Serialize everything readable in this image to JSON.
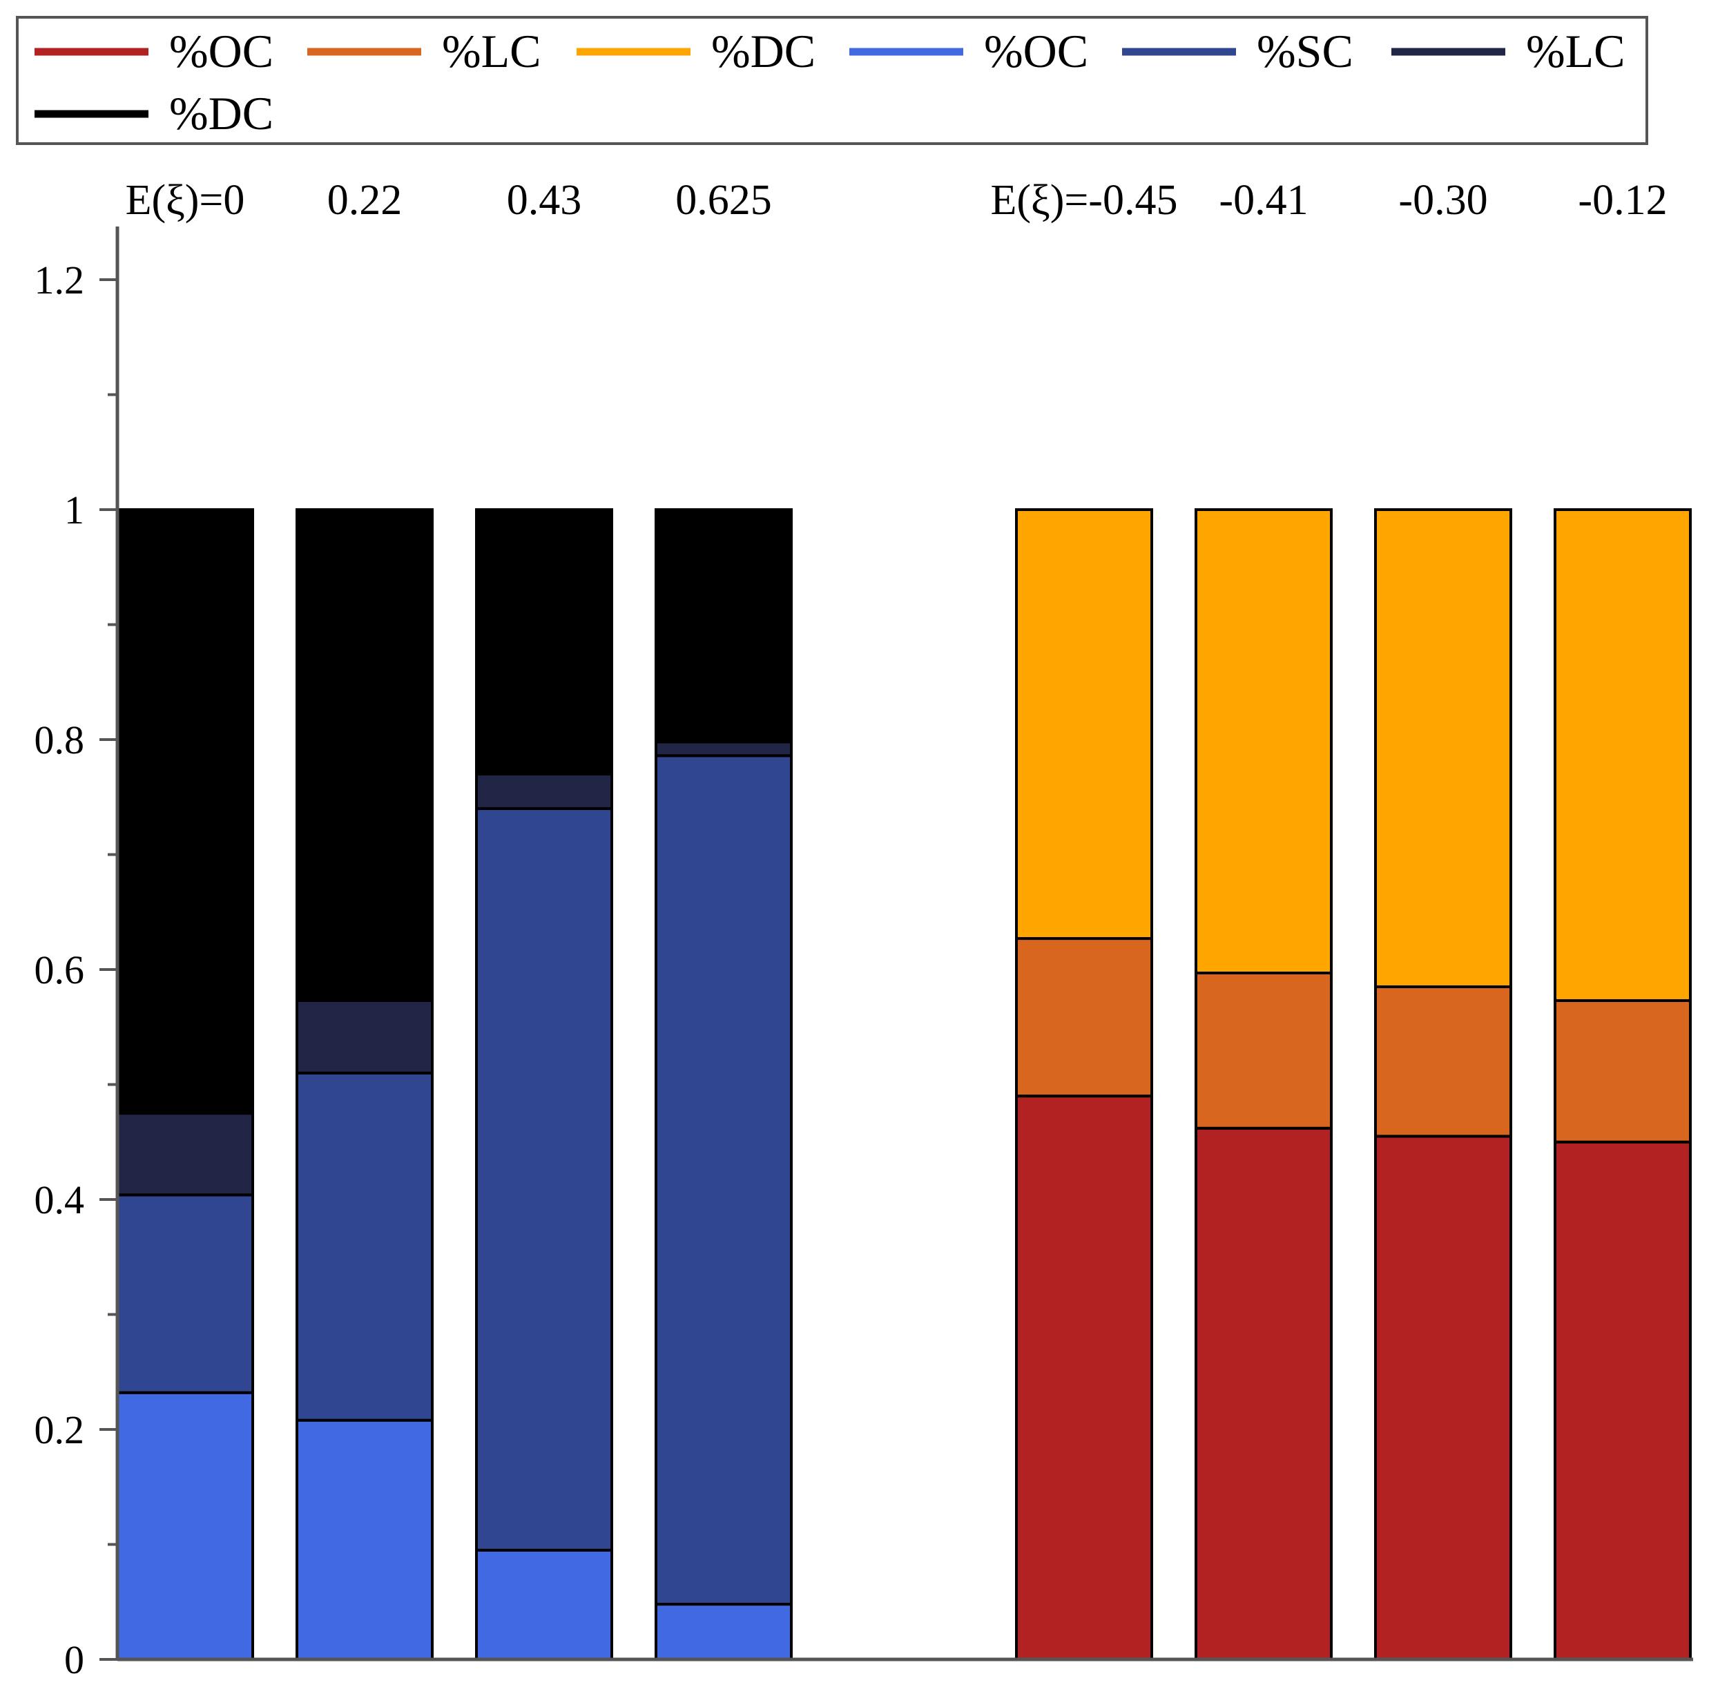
{
  "chart_data": {
    "type": "bar",
    "stacked": true,
    "y_ticks": [
      "0",
      "0.2",
      "0.4",
      "0.6",
      "0.8",
      "1",
      "1.2"
    ],
    "y_tick_values": [
      0,
      0.2,
      0.4,
      0.6,
      0.8,
      1.0,
      1.2
    ],
    "y_minor_step": 0.1,
    "ylim": [
      0,
      1.25
    ],
    "legend": [
      {
        "label": "%OC",
        "color": "#b22222"
      },
      {
        "label": "%LC",
        "color": "#d9661f"
      },
      {
        "label": "%DC",
        "color": "#ffa500"
      },
      {
        "label": "%OC",
        "color": "#4169e1"
      },
      {
        "label": "%SC",
        "color": "#314690"
      },
      {
        "label": "%LC",
        "color": "#212546"
      },
      {
        "label": "%DC",
        "color": "#000000"
      }
    ],
    "categories": [
      "E(ξ)=0",
      "0.22",
      "0.43",
      "0.625",
      "E(ξ)=-0.45",
      "-0.41",
      "-0.30",
      "-0.12"
    ],
    "bars": [
      {
        "label": "E(ξ)=0",
        "segments": [
          {
            "name": "%OC",
            "value": 0.232,
            "color": "#4169e1"
          },
          {
            "name": "%SC",
            "value": 0.172,
            "color": "#314690"
          },
          {
            "name": "%LC",
            "value": 0.071,
            "color": "#212546"
          },
          {
            "name": "%DC",
            "value": 0.525,
            "color": "#000000"
          }
        ]
      },
      {
        "label": "0.22",
        "segments": [
          {
            "name": "%OC",
            "value": 0.208,
            "color": "#4169e1"
          },
          {
            "name": "%SC",
            "value": 0.302,
            "color": "#314690"
          },
          {
            "name": "%LC",
            "value": 0.063,
            "color": "#212546"
          },
          {
            "name": "%DC",
            "value": 0.427,
            "color": "#000000"
          }
        ]
      },
      {
        "label": "0.43",
        "segments": [
          {
            "name": "%OC",
            "value": 0.095,
            "color": "#4169e1"
          },
          {
            "name": "%SC",
            "value": 0.645,
            "color": "#314690"
          },
          {
            "name": "%LC",
            "value": 0.03,
            "color": "#212546"
          },
          {
            "name": "%DC",
            "value": 0.23,
            "color": "#000000"
          }
        ]
      },
      {
        "label": "0.625",
        "segments": [
          {
            "name": "%OC",
            "value": 0.048,
            "color": "#4169e1"
          },
          {
            "name": "%SC",
            "value": 0.738,
            "color": "#314690"
          },
          {
            "name": "%LC",
            "value": 0.012,
            "color": "#212546"
          },
          {
            "name": "%DC",
            "value": 0.202,
            "color": "#000000"
          }
        ]
      },
      {
        "label": "E(ξ)=-0.45",
        "segments": [
          {
            "name": "%OC",
            "value": 0.49,
            "color": "#b22222"
          },
          {
            "name": "%LC",
            "value": 0.137,
            "color": "#d9661f"
          },
          {
            "name": "%DC",
            "value": 0.373,
            "color": "#ffa500"
          }
        ]
      },
      {
        "label": "-0.41",
        "segments": [
          {
            "name": "%OC",
            "value": 0.462,
            "color": "#b22222"
          },
          {
            "name": "%LC",
            "value": 0.135,
            "color": "#d9661f"
          },
          {
            "name": "%DC",
            "value": 0.403,
            "color": "#ffa500"
          }
        ]
      },
      {
        "label": "-0.30",
        "segments": [
          {
            "name": "%OC",
            "value": 0.455,
            "color": "#b22222"
          },
          {
            "name": "%LC",
            "value": 0.13,
            "color": "#d9661f"
          },
          {
            "name": "%DC",
            "value": 0.415,
            "color": "#ffa500"
          }
        ]
      },
      {
        "label": "-0.12",
        "segments": [
          {
            "name": "%OC",
            "value": 0.45,
            "color": "#b22222"
          },
          {
            "name": "%LC",
            "value": 0.123,
            "color": "#d9661f"
          },
          {
            "name": "%DC",
            "value": 0.427,
            "color": "#ffa500"
          }
        ]
      }
    ],
    "grid": false,
    "legend_position": "top"
  }
}
